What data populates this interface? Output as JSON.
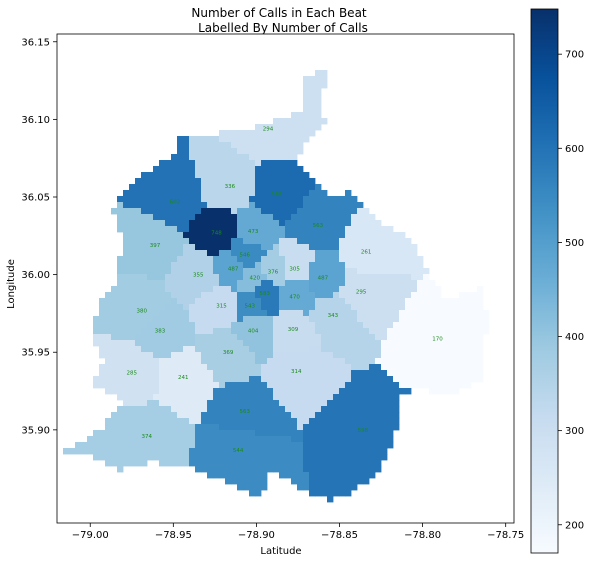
{
  "chart_data": {
    "type": "choropleth",
    "title_line1": "Number of Calls in Each Beat",
    "title_line2": "Labelled By Number of Calls",
    "xlabel": "Latitude",
    "ylabel": "Longitude",
    "xlim": [
      -79.02,
      -78.745
    ],
    "ylim": [
      35.84,
      36.155
    ],
    "x_ticks": [
      -79.0,
      -78.95,
      -78.9,
      -78.85,
      -78.8,
      -78.75
    ],
    "x_tick_labels": [
      "−79.00",
      "−78.95",
      "−78.90",
      "−78.85",
      "−78.80",
      "−78.75"
    ],
    "y_ticks": [
      35.9,
      35.95,
      36.0,
      36.05,
      36.1,
      36.15
    ],
    "y_tick_labels": [
      "35.90",
      "35.95",
      "36.00",
      "36.05",
      "36.10",
      "36.15"
    ],
    "colorbar": {
      "cmap": "Blues",
      "min": 170,
      "max": 748,
      "ticks": [
        200,
        300,
        400,
        500,
        600,
        700
      ],
      "tick_labels": [
        "200",
        "300",
        "400",
        "500",
        "600",
        "700"
      ]
    },
    "beats": [
      {
        "lon": -78.893,
        "lat": 36.094,
        "value": 294
      },
      {
        "lon": -78.916,
        "lat": 36.057,
        "value": 336
      },
      {
        "lon": -78.949,
        "lat": 36.047,
        "value": 602
      },
      {
        "lon": -78.888,
        "lat": 36.052,
        "value": 618
      },
      {
        "lon": -78.924,
        "lat": 36.027,
        "value": 748
      },
      {
        "lon": -78.902,
        "lat": 36.028,
        "value": 473
      },
      {
        "lon": -78.863,
        "lat": 36.032,
        "value": 563
      },
      {
        "lon": -78.961,
        "lat": 36.019,
        "value": 397
      },
      {
        "lon": -78.907,
        "lat": 36.013,
        "value": 546
      },
      {
        "lon": -78.834,
        "lat": 36.015,
        "value": 261
      },
      {
        "lon": -78.877,
        "lat": 36.004,
        "value": 305
      },
      {
        "lon": -78.914,
        "lat": 36.004,
        "value": 487
      },
      {
        "lon": -78.89,
        "lat": 36.002,
        "value": 376
      },
      {
        "lon": -78.935,
        "lat": 36.0,
        "value": 355
      },
      {
        "lon": -78.901,
        "lat": 35.998,
        "value": 420
      },
      {
        "lon": -78.86,
        "lat": 35.998,
        "value": 487
      },
      {
        "lon": -78.837,
        "lat": 35.989,
        "value": 295
      },
      {
        "lon": -78.895,
        "lat": 35.988,
        "value": 583
      },
      {
        "lon": -78.877,
        "lat": 35.986,
        "value": 470
      },
      {
        "lon": -78.921,
        "lat": 35.98,
        "value": 315
      },
      {
        "lon": -78.904,
        "lat": 35.98,
        "value": 543
      },
      {
        "lon": -78.969,
        "lat": 35.977,
        "value": 380
      },
      {
        "lon": -78.854,
        "lat": 35.974,
        "value": 343
      },
      {
        "lon": -78.958,
        "lat": 35.964,
        "value": 383
      },
      {
        "lon": -78.902,
        "lat": 35.964,
        "value": 404
      },
      {
        "lon": -78.878,
        "lat": 35.965,
        "value": 309
      },
      {
        "lon": -78.791,
        "lat": 35.959,
        "value": 170
      },
      {
        "lon": -78.917,
        "lat": 35.95,
        "value": 369
      },
      {
        "lon": -78.975,
        "lat": 35.937,
        "value": 285
      },
      {
        "lon": -78.944,
        "lat": 35.934,
        "value": 241
      },
      {
        "lon": -78.876,
        "lat": 35.938,
        "value": 314
      },
      {
        "lon": -78.907,
        "lat": 35.912,
        "value": 563
      },
      {
        "lon": -78.836,
        "lat": 35.9,
        "value": 598
      },
      {
        "lon": -78.966,
        "lat": 35.896,
        "value": 374
      },
      {
        "lon": -78.911,
        "lat": 35.887,
        "value": 544
      }
    ]
  }
}
